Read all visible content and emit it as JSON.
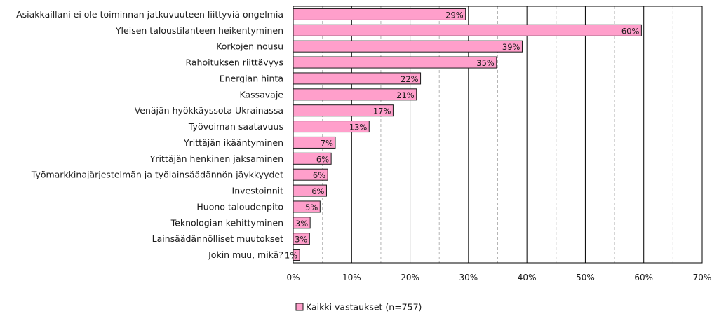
{
  "chart_data": {
    "type": "bar",
    "orientation": "horizontal",
    "categories": [
      "Asiakkaillani ei ole toiminnan jatkuvuuteen liittyviä ongelmia",
      "Yleisen taloustilanteen heikentyminen",
      "Korkojen nousu",
      "Rahoituksen riittävyys",
      "Energian hinta",
      "Kassavaje",
      "Venäjän hyökkäyssota Ukrainassa",
      "Työvoiman saatavuus",
      "Yrittäjän ikääntyminen",
      "Yrittäjän henkinen jaksaminen",
      "Työmarkkinajärjestelmän ja työlainsäädännön jäykkyydet",
      "Investoinnit",
      "Huono taloudenpito",
      "Teknologian kehittyminen",
      "Lainsäädännölliset muutokset",
      "Jokin muu, mikä?"
    ],
    "series": [
      {
        "name": "Kaikki vastaukset (n=757)",
        "values": [
          29.5,
          59.6,
          39.2,
          34.8,
          21.8,
          21.1,
          17.1,
          13.0,
          7.2,
          6.5,
          5.9,
          5.7,
          4.6,
          2.9,
          2.8,
          1.1
        ],
        "data_labels": [
          "29%",
          "60%",
          "39%",
          "35%",
          "22%",
          "21%",
          "17%",
          "13%",
          "7%",
          "6%",
          "6%",
          "6%",
          "5%",
          "3%",
          "3%",
          "1%"
        ]
      }
    ],
    "xlim": [
      0,
      70
    ],
    "x_ticks": [
      0,
      10,
      20,
      30,
      40,
      50,
      60,
      70
    ],
    "x_tick_labels": [
      "0%",
      "10%",
      "20%",
      "30%",
      "40%",
      "50%",
      "60%",
      "70%"
    ],
    "grid": "vertical major solid, minor dashed",
    "legend_position": "bottom",
    "title": "",
    "xlabel": "",
    "ylabel": ""
  },
  "colors": {
    "bar_fill": "#ff9fcb",
    "bar_stroke": "#1a1a1a",
    "major_grid": "#000000",
    "minor_grid": "#b5b5b5",
    "frame": "#000000"
  }
}
